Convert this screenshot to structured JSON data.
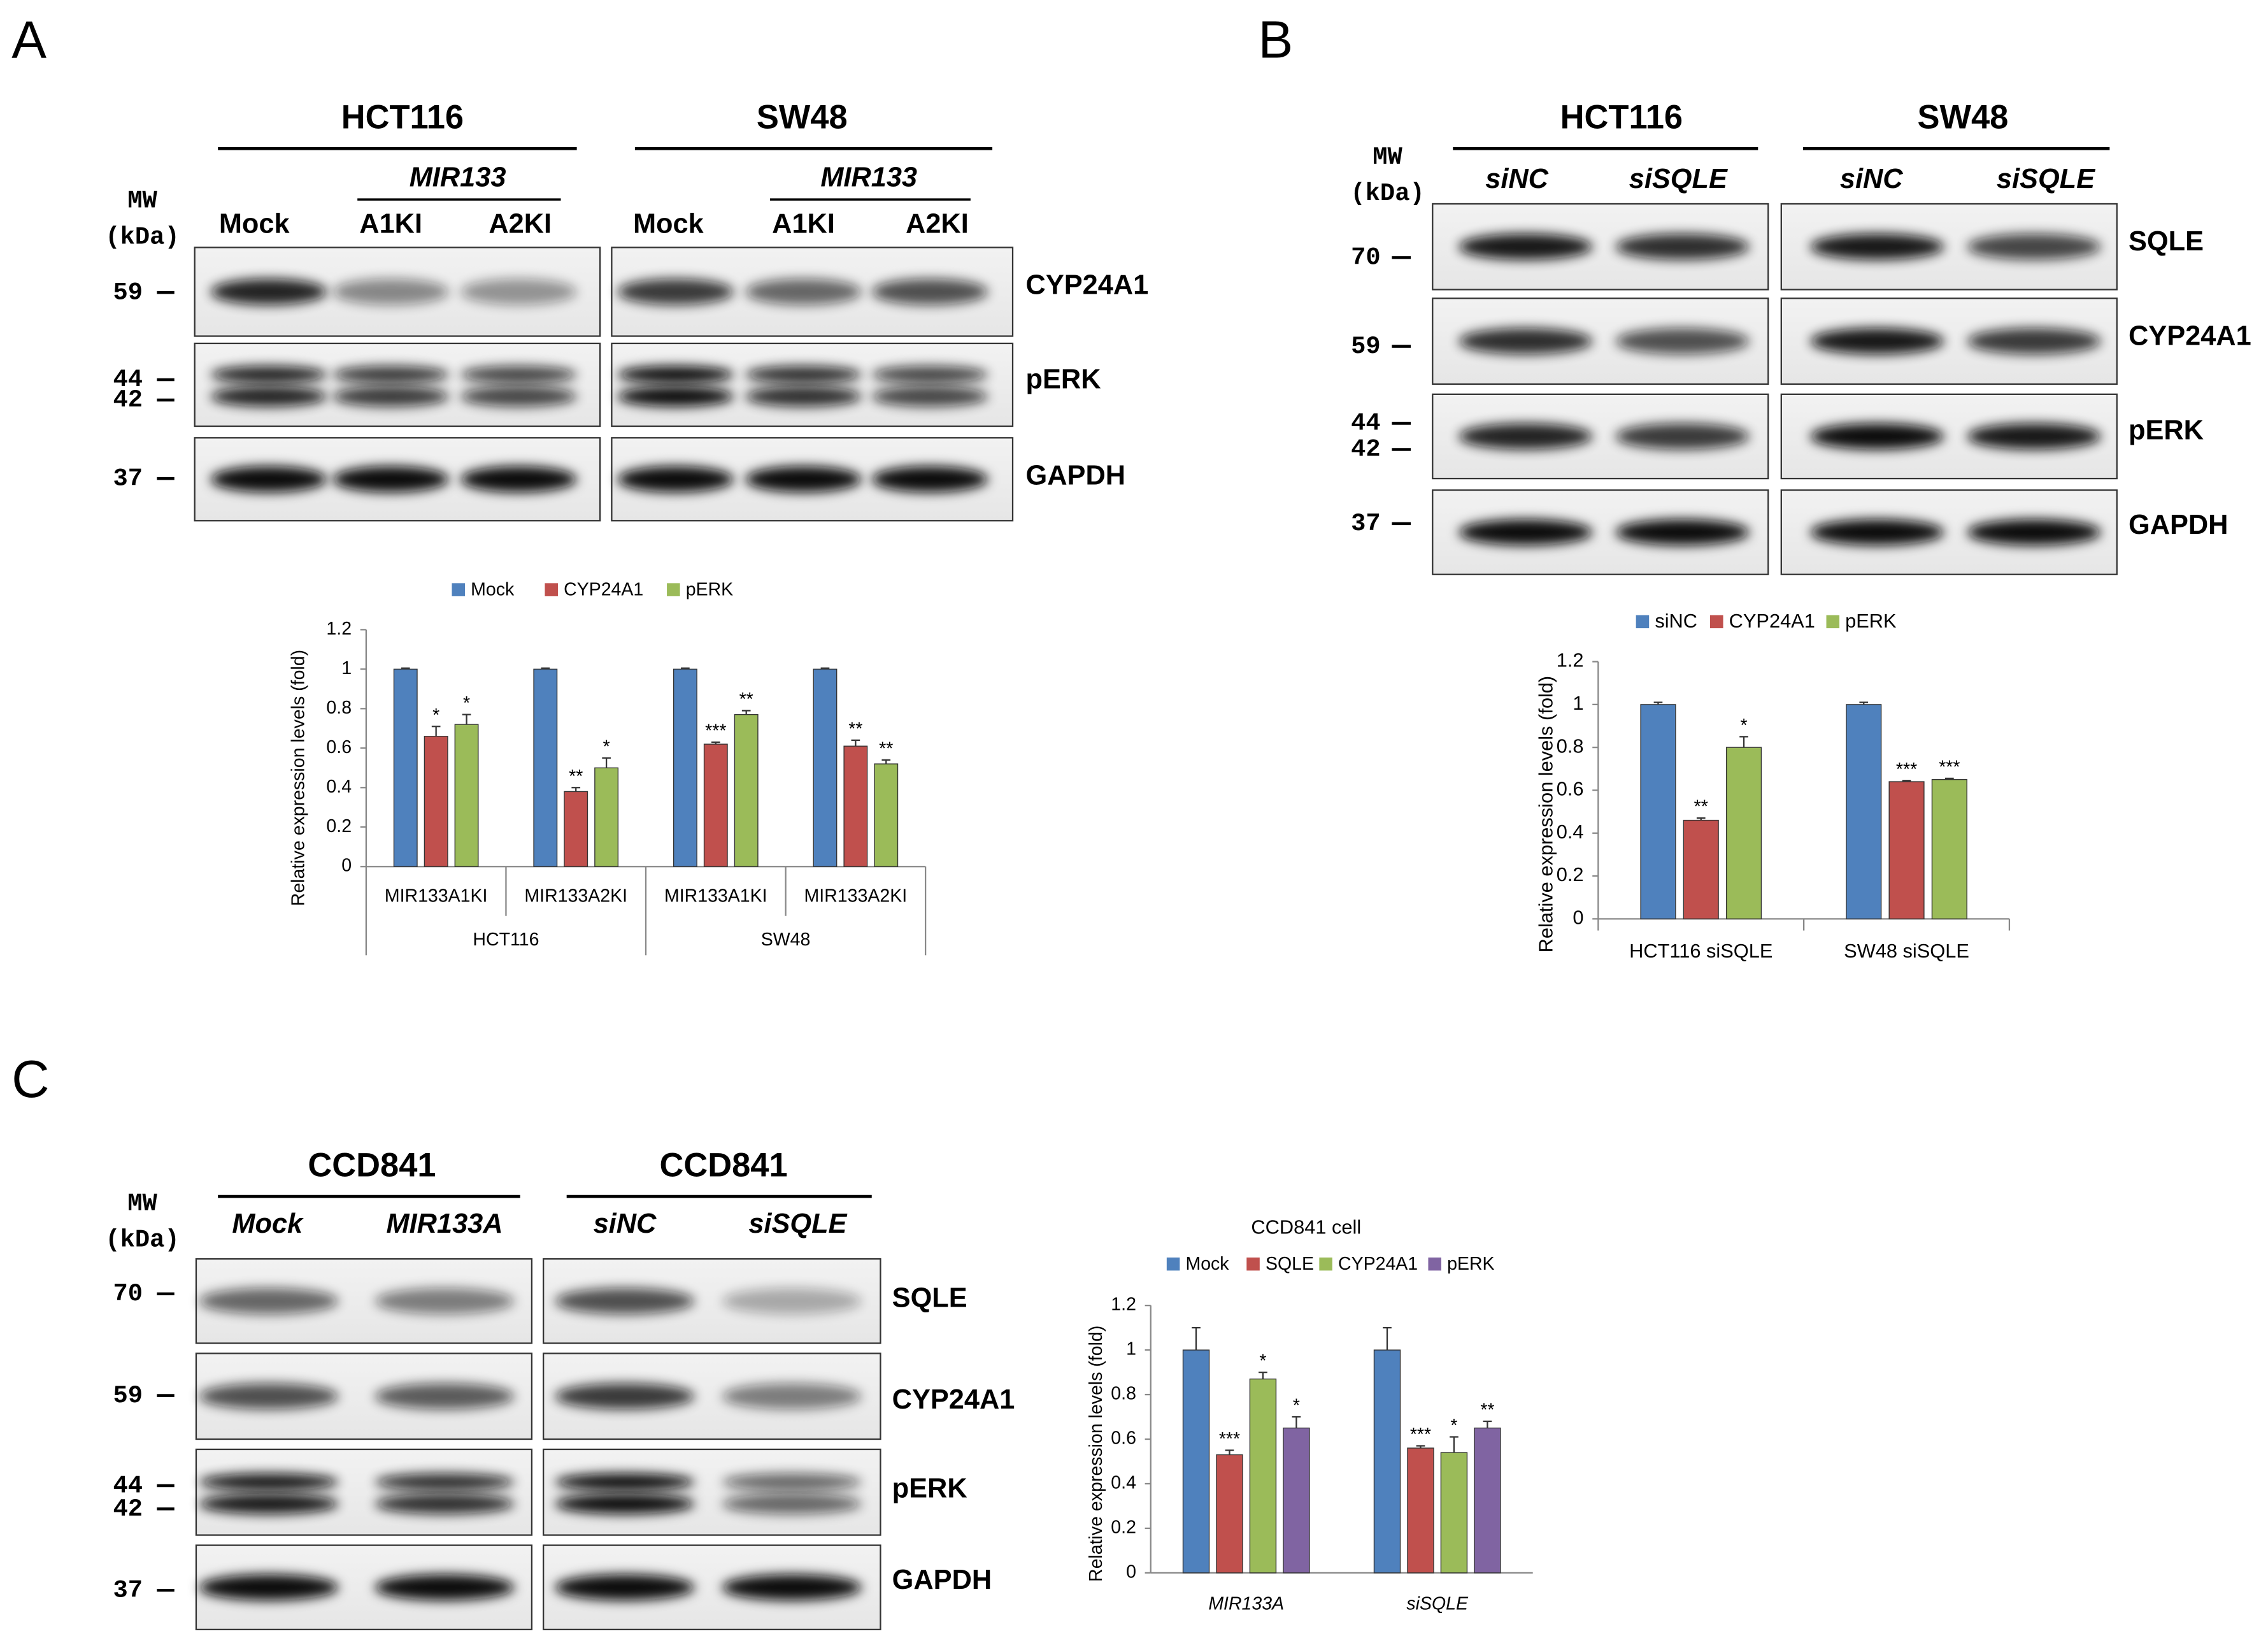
{
  "panels": [
    {
      "letter": "A",
      "cell_lines": [
        "HCT116",
        "SW48"
      ],
      "construct": "MIR133",
      "mw": [
        "MW",
        "(kDa)"
      ],
      "lanes": [
        "Mock",
        "A1KI",
        "A2KI"
      ],
      "markers": [
        59,
        44,
        42,
        37
      ],
      "proteins": [
        "CYP24A1",
        "pERK",
        "GAPDH"
      ]
    },
    {
      "letter": "B",
      "cell_lines": [
        "HCT116",
        "SW48"
      ],
      "mw": [
        "MW",
        "(kDa)"
      ],
      "lanes": [
        "siNC",
        "siSQLE"
      ],
      "markers": [
        70,
        59,
        44,
        42,
        37
      ],
      "proteins": [
        "SQLE",
        "CYP24A1",
        "pERK",
        "GAPDH"
      ]
    },
    {
      "letter": "C",
      "cell_lines": [
        "CCD841",
        "CCD841"
      ],
      "mw": [
        "MW",
        "(kDa)"
      ],
      "lanes": [
        "Mock",
        "MIR133A",
        "siNC",
        "siSQLE"
      ],
      "markers": [
        70,
        59,
        44,
        42,
        37
      ],
      "proteins": [
        "SQLE",
        "CYP24A1",
        "pERK",
        "GAPDH"
      ]
    }
  ],
  "chart_data": [
    {
      "type": "bar",
      "y_label": "Relative expression levels (fold)",
      "categories": [
        "MIR133A1KI",
        "MIR133A2KI",
        "MIR133A1KI",
        "MIR133A2KI"
      ],
      "groups": [
        "HCT116",
        "SW48"
      ],
      "series": [
        {
          "name": "Mock",
          "color": "#4f81bd",
          "values": [
            1,
            1,
            1,
            1
          ],
          "errors": [
            0.005,
            0.005,
            0.005,
            0.005
          ]
        },
        {
          "name": "CYP24A1",
          "color": "#c0504d",
          "values": [
            0.66,
            0.38,
            0.62,
            0.61
          ],
          "errors": [
            0.05,
            0.02,
            0.01,
            0.03
          ],
          "stars": [
            "*",
            "**",
            "***",
            "**"
          ]
        },
        {
          "name": "pERK",
          "color": "#9bbb59",
          "values": [
            0.72,
            0.5,
            0.77,
            0.52
          ],
          "errors": [
            0.05,
            0.05,
            0.02,
            0.02
          ],
          "stars": [
            "*",
            "*",
            "**",
            "**"
          ]
        }
      ],
      "ylim": [
        0,
        1.2
      ],
      "yticks": [
        0,
        0.2,
        0.4,
        0.6,
        0.8,
        1,
        1.2
      ]
    },
    {
      "type": "bar",
      "y_label": "Relative expression levels (fold)",
      "categories": [
        "HCT116 siSQLE",
        "SW48 siSQLE"
      ],
      "series": [
        {
          "name": "siNC",
          "color": "#4f81bd",
          "values": [
            1,
            1
          ],
          "errors": [
            0.01,
            0.01
          ]
        },
        {
          "name": "CYP24A1",
          "color": "#c0504d",
          "values": [
            0.46,
            0.64
          ],
          "errors": [
            0.01,
            0.005
          ],
          "stars": [
            "**",
            "***"
          ]
        },
        {
          "name": "pERK",
          "color": "#9bbb59",
          "values": [
            0.8,
            0.65
          ],
          "errors": [
            0.05,
            0.005
          ],
          "stars": [
            "*",
            "***"
          ]
        }
      ],
      "ylim": [
        0,
        1.2
      ],
      "yticks": [
        0,
        0.2,
        0.4,
        0.6,
        0.8,
        1,
        1.2
      ]
    },
    {
      "type": "bar",
      "title": "CCD841 cell",
      "y_label": "Relative expression levels (fold)",
      "categories": [
        "MIR133A",
        "siSQLE"
      ],
      "series": [
        {
          "name": "Mock",
          "color": "#4f81bd",
          "values": [
            1,
            1
          ],
          "errors": [
            0.1,
            0.1
          ]
        },
        {
          "name": "SQLE",
          "color": "#c0504d",
          "values": [
            0.53,
            0.56
          ],
          "errors": [
            0.02,
            0.01
          ],
          "stars": [
            "***",
            "***"
          ]
        },
        {
          "name": "CYP24A1",
          "color": "#9bbb59",
          "values": [
            0.87,
            0.54
          ],
          "errors": [
            0.03,
            0.07
          ],
          "stars": [
            "*",
            "*"
          ]
        },
        {
          "name": "pERK",
          "color": "#8064a2",
          "values": [
            0.65,
            0.65
          ],
          "errors": [
            0.05,
            0.03
          ],
          "stars": [
            "*",
            "**"
          ]
        }
      ],
      "ylim": [
        0,
        1.2
      ],
      "yticks": [
        0,
        0.2,
        0.4,
        0.6,
        0.8,
        1,
        1.2
      ]
    }
  ]
}
